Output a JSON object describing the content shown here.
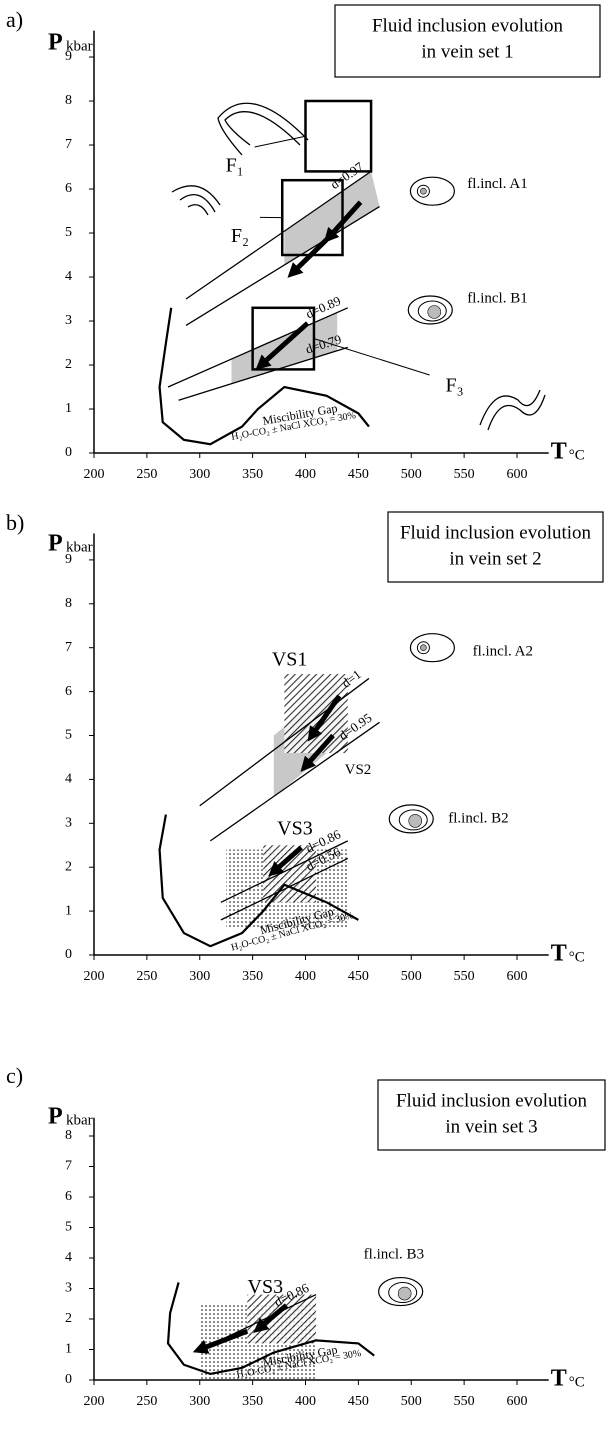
{
  "chart_data": [
    {
      "type": "line",
      "panel_label": "a)",
      "title": [
        "Fluid inclusion evolution",
        "in vein set 1"
      ],
      "y_label": "P",
      "y_unit": "kbar",
      "x_label": "T",
      "x_unit": "°C",
      "xlim": [
        200,
        630
      ],
      "ylim": [
        0,
        9.6
      ],
      "xticks": [
        200,
        250,
        300,
        350,
        400,
        450,
        500,
        550,
        600
      ],
      "yticks": [
        0,
        1,
        2,
        3,
        4,
        5,
        6,
        7,
        8,
        9
      ],
      "series": [
        {
          "name": "d=0.97",
          "color": "#000000",
          "x": [
            287,
            462
          ],
          "values": [
            3.5,
            6.4
          ]
        },
        {
          "name": "d=0.89",
          "color": "#000000",
          "x": [
            270,
            440
          ],
          "values": [
            1.5,
            3.3
          ]
        },
        {
          "name": "d=0.79",
          "color": "#000000",
          "x": [
            280,
            440
          ],
          "values": [
            1.2,
            2.4
          ]
        },
        {
          "name": "Miscibility Gap",
          "color": "#000000",
          "x": [
            273,
            268,
            262,
            265,
            285,
            310,
            340,
            355,
            380,
            420,
            450,
            460
          ],
          "values": [
            3.3,
            2.5,
            1.5,
            0.7,
            0.3,
            0.2,
            0.6,
            1.0,
            1.5,
            1.3,
            0.9,
            0.6
          ]
        }
      ],
      "second_isochore": {
        "color": "#000000",
        "x": [
          287,
          470
        ],
        "values": [
          2.9,
          5.6
        ]
      },
      "boxes": [
        {
          "name": "F₁",
          "x": [
            400,
            462
          ],
          "values": [
            6.4,
            8.0
          ]
        },
        {
          "name": "F₂",
          "x": [
            378,
            435
          ],
          "values": [
            4.5,
            6.2
          ]
        },
        {
          "name": "F₃",
          "x": [
            350,
            408
          ],
          "values": [
            1.9,
            3.3
          ]
        }
      ],
      "annotations": [
        "fl.incl. A1",
        "fl.incl. B1",
        "H₂O-CO₂ ± NaCl  XCO₂ = 30%"
      ]
    },
    {
      "type": "line",
      "panel_label": "b)",
      "title": [
        "Fluid inclusion evolution",
        "in vein set 2"
      ],
      "y_label": "P",
      "y_unit": "kbar",
      "x_label": "T",
      "x_unit": "°C",
      "xlim": [
        200,
        630
      ],
      "ylim": [
        0,
        9.6
      ],
      "xticks": [
        200,
        250,
        300,
        350,
        400,
        450,
        500,
        550,
        600
      ],
      "yticks": [
        0,
        1,
        2,
        3,
        4,
        5,
        6,
        7,
        8,
        9
      ],
      "series": [
        {
          "name": "d=1",
          "color": "#000000",
          "x": [
            300,
            460
          ],
          "values": [
            3.4,
            6.3
          ]
        },
        {
          "name": "d=0.95",
          "color": "#000000",
          "x": [
            310,
            470
          ],
          "values": [
            2.6,
            5.3
          ]
        },
        {
          "name": "d=0.86",
          "color": "#000000",
          "x": [
            320,
            440
          ],
          "values": [
            1.2,
            2.6
          ]
        },
        {
          "name": "d=0.56",
          "color": "#000000",
          "x": [
            320,
            440
          ],
          "values": [
            0.8,
            2.2
          ]
        },
        {
          "name": "Miscibility Gap",
          "color": "#000000",
          "x": [
            268,
            262,
            265,
            285,
            310,
            340,
            360,
            380,
            420,
            450
          ],
          "values": [
            3.2,
            2.4,
            1.3,
            0.5,
            0.2,
            0.5,
            1.0,
            1.6,
            1.2,
            0.8
          ]
        }
      ],
      "boxes": [
        {
          "name": "VS1",
          "x": [
            380,
            440
          ],
          "values": [
            4.6,
            6.4
          ]
        },
        {
          "name": "VS3",
          "x": [
            360,
            410
          ],
          "values": [
            1.2,
            2.5
          ]
        }
      ],
      "annotations": [
        "VS2",
        "fl.incl. A2",
        "fl.incl. B2",
        "H₂O-CO₂ ± NaCl  XCO₂ = 30%"
      ]
    },
    {
      "type": "line",
      "panel_label": "c)",
      "title": [
        "Fluid inclusion evolution",
        "in vein set 3"
      ],
      "y_label": "P",
      "y_unit": "kbar",
      "x_label": "T",
      "x_unit": "°C",
      "xlim": [
        200,
        630
      ],
      "ylim": [
        0,
        8.6
      ],
      "xticks": [
        200,
        250,
        300,
        350,
        400,
        450,
        500,
        550,
        600
      ],
      "yticks": [
        0,
        1,
        2,
        3,
        4,
        5,
        6,
        7,
        8
      ],
      "series": [
        {
          "name": "d=0.86",
          "color": "#000000",
          "x": [
            325,
            410
          ],
          "values": [
            1.4,
            2.8
          ]
        },
        {
          "name": "Miscibility Gap",
          "color": "#000000",
          "x": [
            280,
            272,
            270,
            285,
            310,
            340,
            370,
            410,
            450,
            465
          ],
          "values": [
            3.2,
            2.2,
            1.2,
            0.5,
            0.2,
            0.4,
            0.9,
            1.3,
            1.2,
            0.8
          ]
        }
      ],
      "boxes": [
        {
          "name": "VS3",
          "x": [
            345,
            410
          ],
          "values": [
            1.2,
            2.8
          ]
        }
      ],
      "annotations": [
        "fl.incl. B3",
        "H₂O-CO₂ ± NaCl  XCO₂ = 30%"
      ]
    }
  ]
}
